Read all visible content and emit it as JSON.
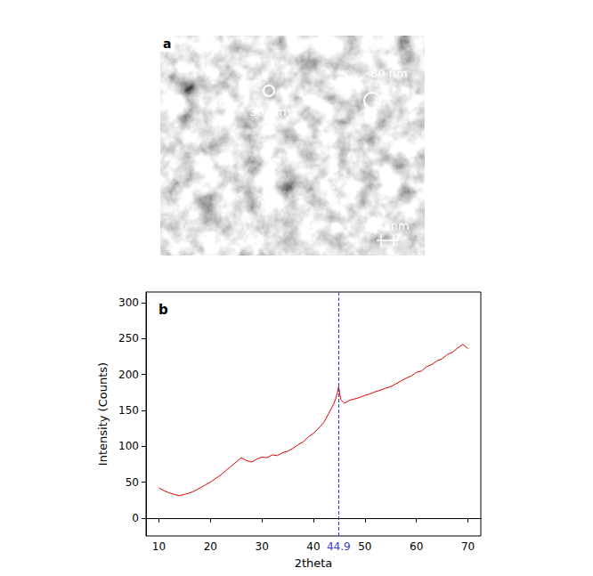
{
  "image_panel": {
    "panel_label": "a",
    "scale_bar": "50 nm",
    "circles": [
      {
        "label": "30 nm"
      },
      {
        "label": "60 nm"
      }
    ]
  },
  "chart_data": {
    "type": "line",
    "panel_label": "b",
    "x_label": "2theta",
    "y_label": "Intensity (Counts)",
    "color": "#e00000",
    "x": [
      10,
      11,
      12,
      13,
      14,
      15,
      16,
      17,
      18,
      19,
      20,
      21,
      22,
      23,
      24,
      25,
      26,
      27,
      28,
      29,
      30,
      31,
      32,
      33,
      34,
      35,
      36,
      37,
      38,
      39,
      40,
      41,
      42,
      43,
      44,
      44.5,
      44.9,
      45.3,
      46,
      47,
      48,
      49,
      50,
      51,
      52,
      53,
      54,
      55,
      56,
      57,
      58,
      59,
      60,
      61,
      62,
      63,
      64,
      65,
      66,
      67,
      68,
      69,
      70
    ],
    "values": [
      42,
      38,
      35,
      33,
      31,
      33,
      35,
      38,
      42,
      46,
      50,
      55,
      60,
      66,
      72,
      78,
      84,
      80,
      78,
      82,
      85,
      84,
      88,
      87,
      91,
      93,
      97,
      102,
      106,
      113,
      118,
      125,
      133,
      146,
      160,
      170,
      183,
      165,
      160,
      164,
      166,
      168,
      171,
      173,
      176,
      178,
      181,
      183,
      187,
      191,
      195,
      198,
      203,
      205,
      211,
      214,
      219,
      222,
      228,
      231,
      237,
      242,
      236
    ],
    "xlim": [
      7.5,
      72.5
    ],
    "xticks": [
      10,
      20,
      30,
      40,
      50,
      60,
      70
    ],
    "ylim": [
      -25,
      315
    ],
    "yticks": [
      0,
      50,
      100,
      150,
      200,
      250,
      300
    ],
    "grid": false,
    "annotations": [
      {
        "x": 44.9,
        "text": "44.9"
      }
    ]
  }
}
